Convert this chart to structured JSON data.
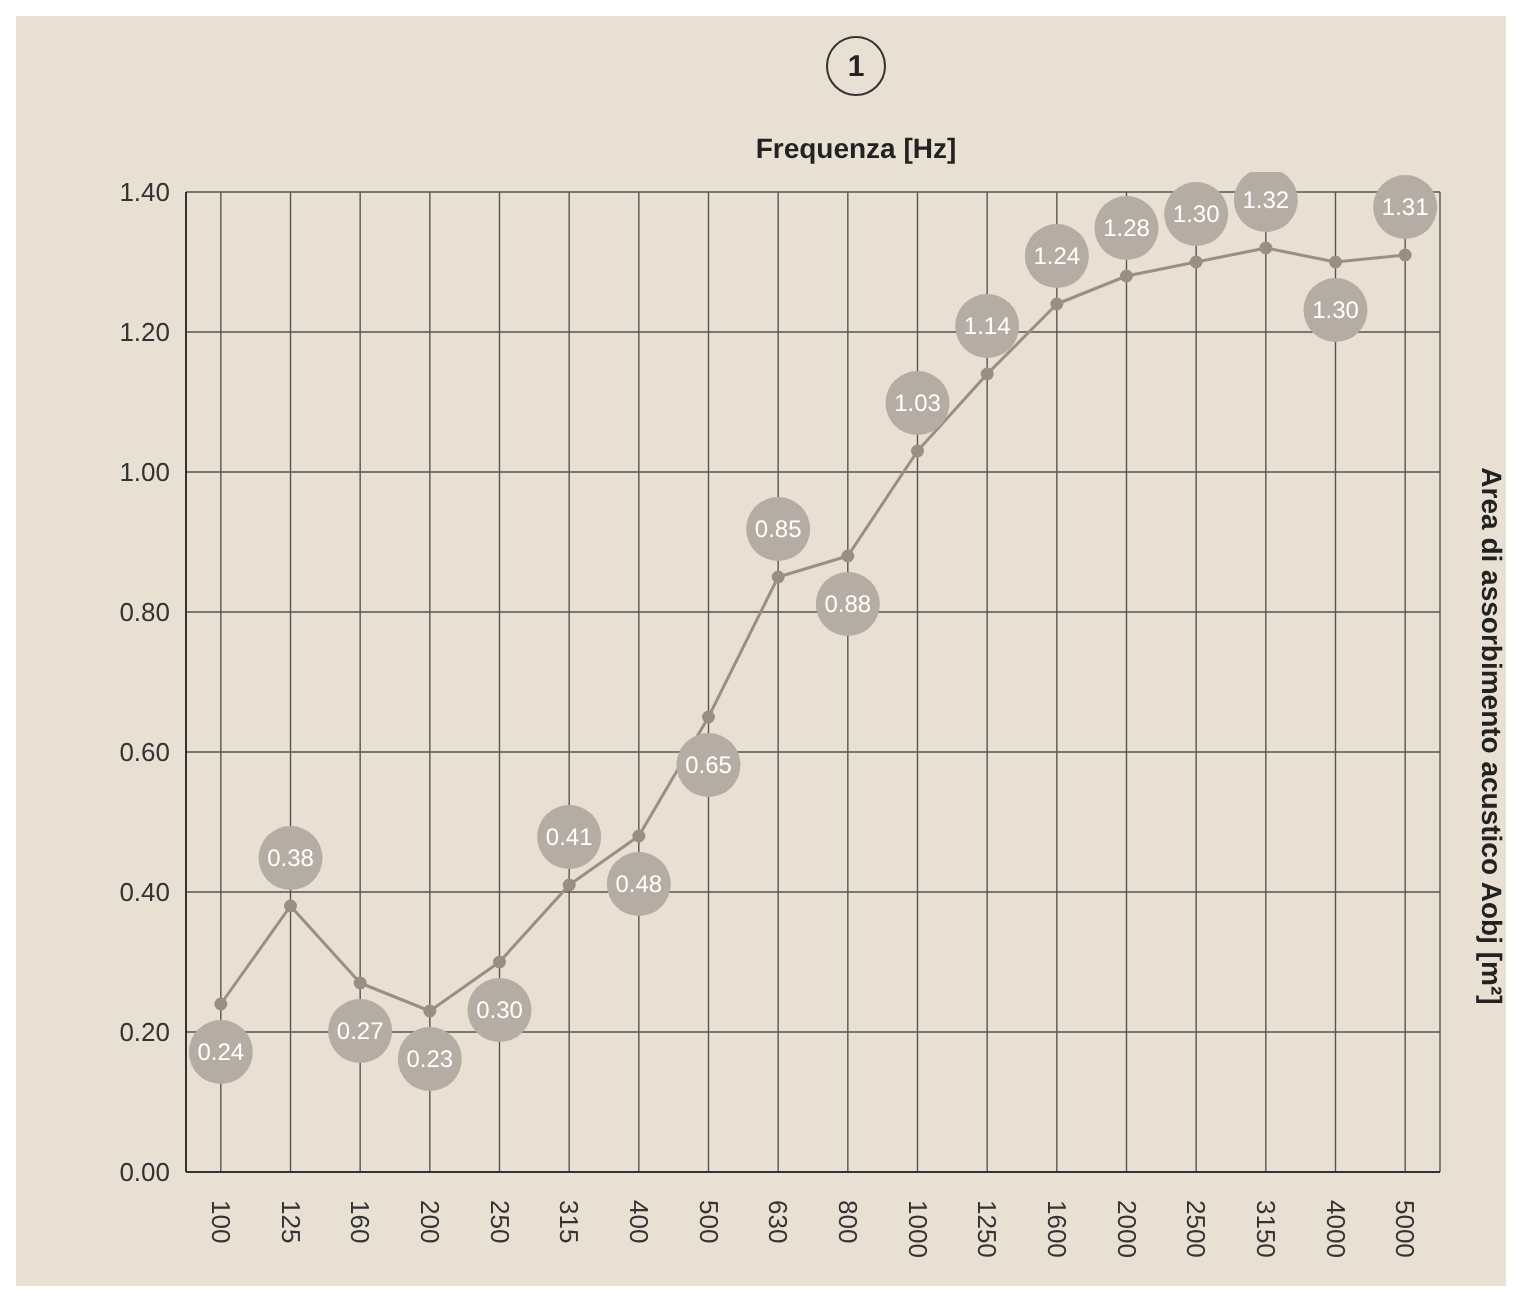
{
  "chart_data": {
    "type": "line",
    "xlabel": "Frequenza [Hz]",
    "ylabel": "Area di assorbimento acustico Aobj [m²]",
    "annotations": [
      "1"
    ],
    "categories": [
      "100",
      "125",
      "160",
      "200",
      "250",
      "315",
      "400",
      "500",
      "630",
      "800",
      "1000",
      "1250",
      "1600",
      "2000",
      "2500",
      "3150",
      "4000",
      "5000"
    ],
    "series": [
      {
        "color": "#9b8f84",
        "values": [
          0.24,
          0.38,
          0.27,
          0.23,
          0.3,
          0.41,
          0.48,
          0.65,
          0.85,
          0.88,
          1.03,
          1.14,
          1.24,
          1.28,
          1.3,
          1.32,
          1.3,
          1.31
        ],
        "value_labels": [
          "0.24",
          "0.38",
          "0.27",
          "0.23",
          "0.30",
          "0.41",
          "0.48",
          "0.65",
          "0.85",
          "0.88",
          "1.03",
          "1.14",
          "1.24",
          "1.28",
          "1.30",
          "1.32",
          "1.30",
          "1.31"
        ]
      }
    ],
    "ylim": [
      0,
      1.4
    ],
    "yticks": [
      {
        "value": 0,
        "label": "0.00"
      },
      {
        "value": 0.2,
        "label": "0.20"
      },
      {
        "value": 0.4,
        "label": "0.40"
      },
      {
        "value": 0.6,
        "label": "0.60"
      },
      {
        "value": 0.8,
        "label": "0.80"
      },
      {
        "value": 1,
        "label": "1.00"
      },
      {
        "value": 1.2,
        "label": "1.20"
      },
      {
        "value": 1.4,
        "label": "1.40"
      }
    ],
    "grid": true,
    "marker": "circle",
    "line_style": "solid"
  }
}
